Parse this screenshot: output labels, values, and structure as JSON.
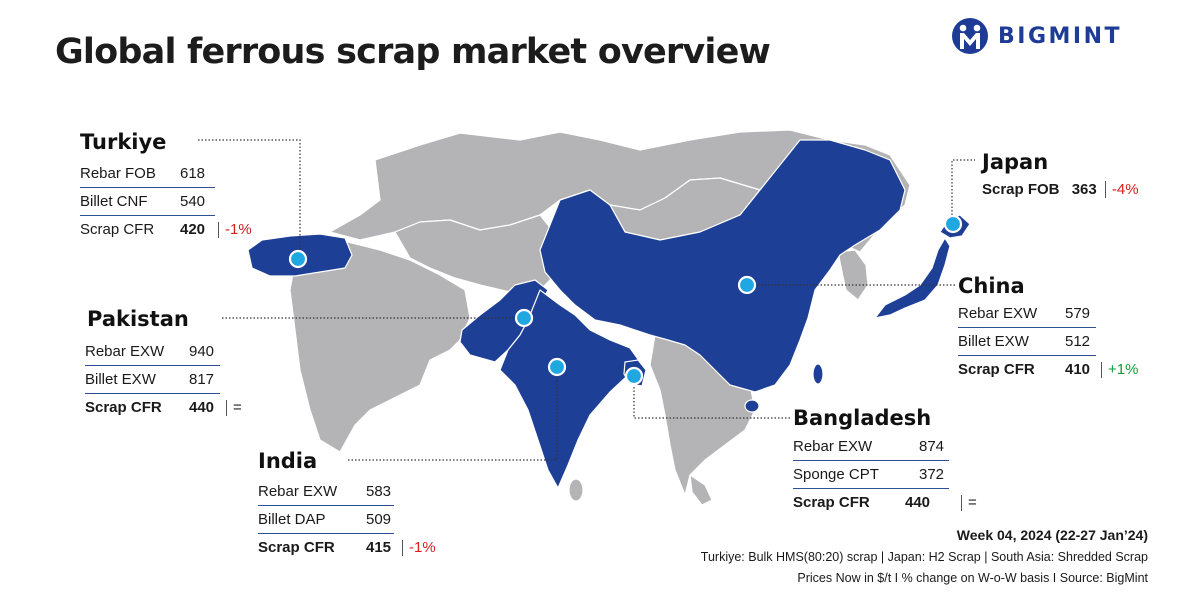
{
  "title": "Global ferrous scrap market overview",
  "logo": {
    "text": "BIGMINT"
  },
  "colors": {
    "highlight_land": "#1e3f96",
    "other_land": "#b4b4b6",
    "marker": "#1ea7e1",
    "negative": "#d32020",
    "positive": "#149b3a"
  },
  "countries": {
    "turkiye": {
      "name": "Turkiye",
      "rows": [
        {
          "label": "Rebar FOB",
          "value": "618"
        },
        {
          "label": "Billet CNF",
          "value": "540"
        },
        {
          "label": "Scrap CFR",
          "value": "420",
          "change": "-1%"
        }
      ]
    },
    "japan": {
      "name": "Japan",
      "rows": [
        {
          "label": "Scrap FOB",
          "value": "363",
          "change": "-4%"
        }
      ]
    },
    "china": {
      "name": "China",
      "rows": [
        {
          "label": "Rebar EXW",
          "value": "579"
        },
        {
          "label": "Billet EXW",
          "value": "512"
        },
        {
          "label": "Scrap CFR",
          "value": "410",
          "change": "+1%"
        }
      ]
    },
    "pakistan": {
      "name": "Pakistan",
      "rows": [
        {
          "label": "Rebar EXW",
          "value": "940"
        },
        {
          "label": "Billet EXW",
          "value": "817"
        },
        {
          "label": "Scrap CFR",
          "value": "440",
          "change": "="
        }
      ]
    },
    "india": {
      "name": "India",
      "rows": [
        {
          "label": "Rebar EXW",
          "value": "583"
        },
        {
          "label": "Billet DAP",
          "value": "509"
        },
        {
          "label": "Scrap CFR",
          "value": "415",
          "change": "-1%"
        }
      ]
    },
    "bangladesh": {
      "name": "Bangladesh",
      "rows": [
        {
          "label": "Rebar EXW",
          "value": "874"
        },
        {
          "label": "Sponge CPT",
          "value": "372"
        },
        {
          "label": "Scrap CFR",
          "value": "440",
          "change": "="
        }
      ]
    }
  },
  "footer": {
    "week": "Week 04, 2024 (22-27 Jan’24)",
    "note1": "Turkiye: Bulk HMS(80:20) scrap | Japan: H2 Scrap | South Asia: Shredded Scrap",
    "note2": "Prices Now in $/t  I  % change on W-o-W basis  I  Source: BigMint"
  }
}
